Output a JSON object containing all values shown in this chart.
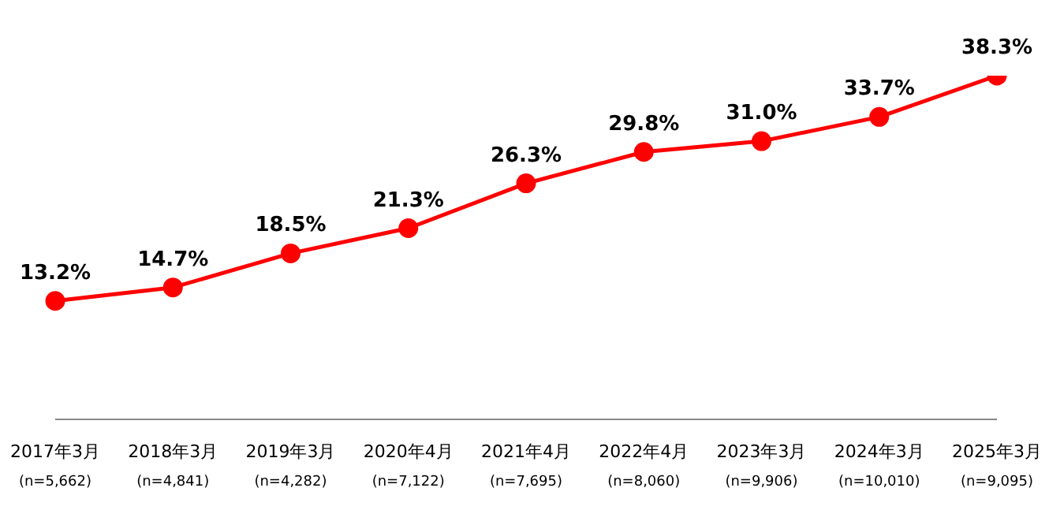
{
  "chart_data": {
    "type": "line",
    "categories": [
      "2017年3月\n(n=5,662)",
      "2018年3月\n(n=4,841)",
      "2019年3月\n(n=4,282)",
      "2020年4月\n(n=7,122)",
      "2021年4月\n(n=7,695)",
      "2022年4月\n(n=8,060)",
      "2023年3月\n(n=9,906)",
      "2024年3月\n(n=10,010)",
      "2025年3月\n(n=9,095)"
    ],
    "series": [
      {
        "color": "#ff0000",
        "values": [
          13.2,
          14.7,
          18.5,
          21.3,
          26.3,
          29.8,
          31.0,
          33.7,
          38.3
        ],
        "value_labels": [
          "13.2%",
          "14.7%",
          "18.5%",
          "21.3%",
          "26.3%",
          "29.8%",
          "31.0%",
          "33.7%",
          "38.3%"
        ]
      }
    ],
    "tick_labels": "x",
    "marker": "circle",
    "line_style": "solid"
  }
}
